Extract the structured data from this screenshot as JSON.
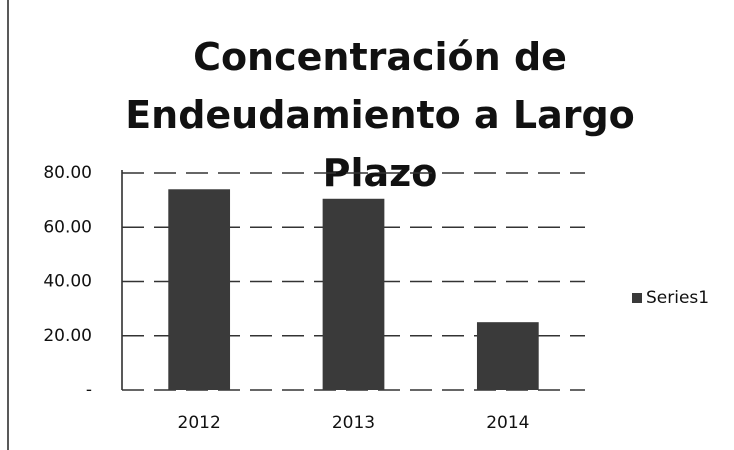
{
  "chart_data": {
    "type": "bar",
    "title": "Concentración de Endeudamiento a Largo Plazo",
    "categories": [
      "2012",
      "2013",
      "2014"
    ],
    "series": [
      {
        "name": "Series1",
        "color": "#3a3a3a",
        "values": [
          74,
          70.5,
          25
        ]
      }
    ],
    "ylim": [
      0,
      80
    ],
    "yticks": [
      {
        "value": 0,
        "label": "-"
      },
      {
        "value": 20,
        "label": "20.00"
      },
      {
        "value": 40,
        "label": "40.00"
      },
      {
        "value": 60,
        "label": "60.00"
      },
      {
        "value": 80,
        "label": "80.00"
      }
    ],
    "grid": true,
    "legend": "right"
  }
}
